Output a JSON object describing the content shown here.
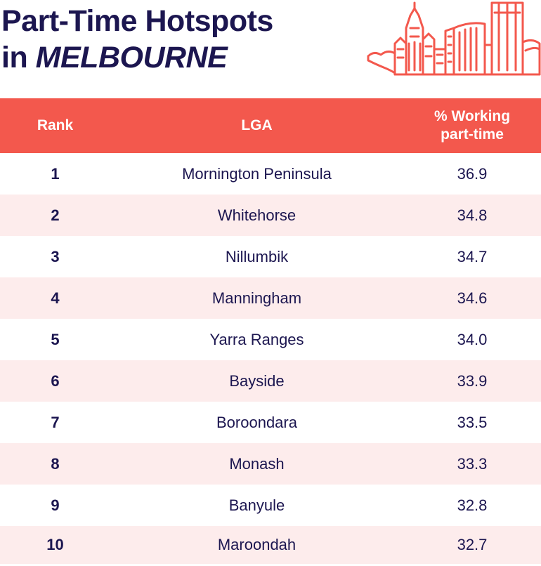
{
  "title": {
    "line1": "Part-Time Hotspots",
    "line2_prefix": "in ",
    "line2_city": "MELBOURNE"
  },
  "colors": {
    "accent": "#f3584d",
    "navy": "#1c1650",
    "stripe": "#fdecec"
  },
  "skyline_icon": "melbourne-skyline-illustration",
  "chart_data": {
    "type": "table",
    "columns": [
      "Rank",
      "LGA",
      "% Working part-time"
    ],
    "header_pct_line1": "% Working",
    "header_pct_line2": "part-time",
    "rows": [
      {
        "rank": "1",
        "lga": "Mornington Peninsula",
        "pct": "36.9"
      },
      {
        "rank": "2",
        "lga": "Whitehorse",
        "pct": "34.8"
      },
      {
        "rank": "3",
        "lga": "Nillumbik",
        "pct": "34.7"
      },
      {
        "rank": "4",
        "lga": "Manningham",
        "pct": "34.6"
      },
      {
        "rank": "5",
        "lga": "Yarra Ranges",
        "pct": "34.0"
      },
      {
        "rank": "6",
        "lga": "Bayside",
        "pct": "33.9"
      },
      {
        "rank": "7",
        "lga": "Boroondara",
        "pct": "33.5"
      },
      {
        "rank": "8",
        "lga": "Monash",
        "pct": "33.3"
      },
      {
        "rank": "9",
        "lga": "Banyule",
        "pct": "32.8"
      },
      {
        "rank": "10",
        "lga": "Maroondah",
        "pct": "32.7"
      }
    ]
  }
}
